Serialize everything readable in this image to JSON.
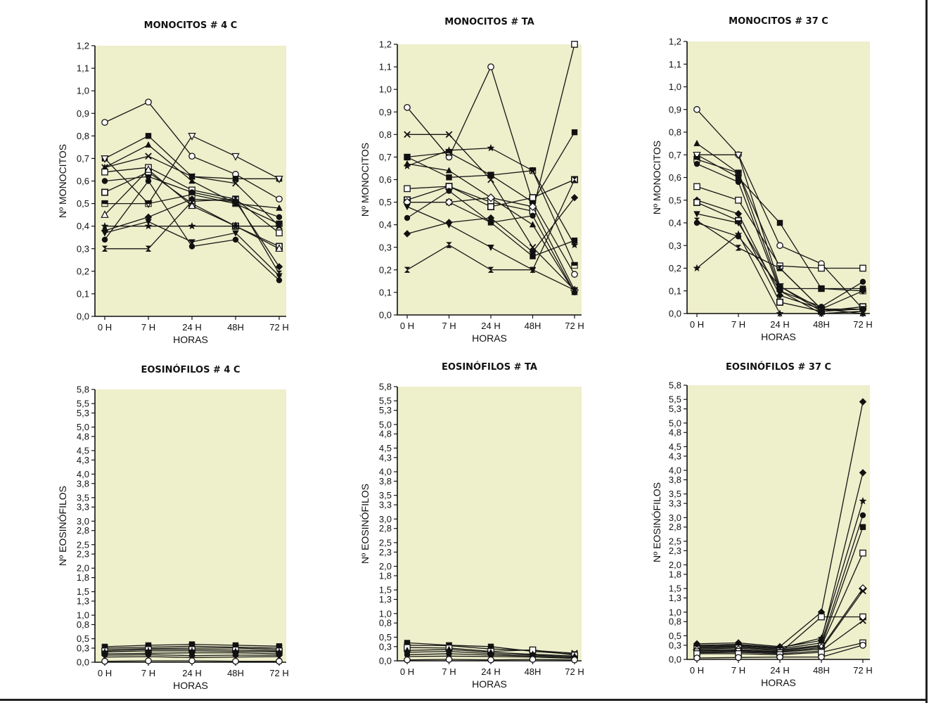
{
  "colors": {
    "plot_background": "#eeefcb",
    "ink": "#151515"
  },
  "chart_data": [
    {
      "type": "line",
      "title": "MONOCITOS # 4 C",
      "xlabel": "HORAS",
      "ylabel": "Nº MONOCITOS",
      "categories": [
        "0 H",
        "7 H",
        "24 H",
        "48H",
        "72 H"
      ],
      "ylim": [
        0,
        1.2
      ],
      "yticks": [
        "0,0",
        "0,1",
        "0,2",
        "0,3",
        "0,4",
        "0,5",
        "0,6",
        "0,7",
        "0,8",
        "0,9",
        "1,0",
        "1,1",
        "1,2"
      ],
      "grid": false,
      "series": [
        {
          "marker": "circle-open",
          "values": [
            0.86,
            0.95,
            0.71,
            0.63,
            0.52
          ]
        },
        {
          "marker": "square-filled",
          "values": [
            0.7,
            0.8,
            0.62,
            0.61,
            0.61
          ]
        },
        {
          "marker": "triangle-down-open",
          "values": [
            0.7,
            0.5,
            0.8,
            0.71,
            0.61
          ]
        },
        {
          "marker": "x",
          "values": [
            0.66,
            0.71,
            0.62,
            0.59,
            0.4
          ]
        },
        {
          "marker": "triangle-filled",
          "values": [
            0.66,
            0.76,
            0.6,
            0.5,
            0.48
          ]
        },
        {
          "marker": "square-open",
          "values": [
            0.64,
            0.66,
            0.56,
            0.52,
            0.37
          ]
        },
        {
          "marker": "circle-filled",
          "values": [
            0.6,
            0.62,
            0.55,
            0.51,
            0.44
          ]
        },
        {
          "marker": "square-dot",
          "values": [
            0.55,
            0.64,
            0.5,
            0.4,
            0.31
          ]
        },
        {
          "marker": "square-half",
          "values": [
            0.5,
            0.5,
            0.54,
            0.5,
            0.41
          ]
        },
        {
          "marker": "triangle-open",
          "values": [
            0.45,
            0.65,
            0.49,
            0.4,
            0.3
          ]
        },
        {
          "marker": "star",
          "values": [
            0.4,
            0.4,
            0.4,
            0.4,
            0.4
          ]
        },
        {
          "marker": "diamond-filled",
          "values": [
            0.38,
            0.44,
            0.52,
            0.51,
            0.22
          ]
        },
        {
          "marker": "triangle-down-filled",
          "values": [
            0.37,
            0.42,
            0.33,
            0.37,
            0.18
          ]
        },
        {
          "marker": "circle-filled",
          "values": [
            0.34,
            0.6,
            0.31,
            0.34,
            0.16
          ]
        },
        {
          "marker": "hourglass",
          "values": [
            0.3,
            0.3,
            0.51,
            0.52,
            0.19
          ]
        }
      ]
    },
    {
      "type": "line",
      "title": "MONOCITOS # TA",
      "xlabel": "HORAS",
      "ylabel": "Nº MONOCITOS",
      "categories": [
        "0 H",
        "7 H",
        "24 H",
        "48H",
        "72 H"
      ],
      "ylim": [
        0,
        1.2
      ],
      "yticks": [
        "0,0",
        "0,1",
        "0,2",
        "0,3",
        "0,4",
        "0,5",
        "0,6",
        "0,7",
        "0,8",
        "0,9",
        "1,0",
        "1,1",
        "1,2"
      ],
      "grid": false,
      "series": [
        {
          "marker": "circle-open",
          "values": [
            0.92,
            0.7,
            1.1,
            0.5,
            0.18
          ]
        },
        {
          "marker": "x",
          "values": [
            0.8,
            0.8,
            0.6,
            0.3,
            0.11
          ]
        },
        {
          "marker": "square-half",
          "values": [
            0.7,
            0.72,
            0.62,
            0.64,
            0.22
          ]
        },
        {
          "marker": "square-filled",
          "values": [
            0.7,
            0.61,
            0.62,
            0.5,
            0.81
          ]
        },
        {
          "marker": "triangle-filled",
          "values": [
            0.67,
            0.64,
            0.52,
            0.4,
            0.1
          ]
        },
        {
          "marker": "star",
          "values": [
            0.66,
            0.73,
            0.74,
            0.64,
            0.31
          ]
        },
        {
          "marker": "square-open",
          "values": [
            0.56,
            0.57,
            0.5,
            0.46,
            1.2
          ]
        },
        {
          "marker": "square-dot",
          "values": [
            0.51,
            0.57,
            0.48,
            0.52,
            0.6
          ]
        },
        {
          "marker": "square-filled",
          "values": [
            0.5,
            0.5,
            0.41,
            0.26,
            0.33
          ]
        },
        {
          "marker": "diamond-open",
          "values": [
            0.5,
            0.5,
            0.52,
            0.48,
            0.11
          ]
        },
        {
          "marker": "circle-filled",
          "values": [
            0.43,
            0.55,
            0.41,
            0.44,
            0.1
          ]
        },
        {
          "marker": "triangle-down-filled",
          "values": [
            0.48,
            0.4,
            0.3,
            0.2,
            0.11
          ]
        },
        {
          "marker": "diamond-filled",
          "values": [
            0.36,
            0.41,
            0.43,
            0.28,
            0.52
          ]
        },
        {
          "marker": "hourglass",
          "values": [
            0.2,
            0.31,
            0.2,
            0.2,
            0.6
          ]
        }
      ]
    },
    {
      "type": "line",
      "title": "MONOCITOS # 37 C",
      "xlabel": "HORAS",
      "ylabel": "Nº MONOCITOS",
      "categories": [
        "0 H",
        "7 H",
        "24 H",
        "48H",
        "72 H"
      ],
      "ylim": [
        0,
        1.2
      ],
      "yticks": [
        "0,0",
        "0,1",
        "0,2",
        "0,3",
        "0,4",
        "0,5",
        "0,6",
        "0,7",
        "0,8",
        "0,9",
        "1,0",
        "1,1",
        "1,2"
      ],
      "grid": false,
      "series": [
        {
          "marker": "circle-open",
          "values": [
            0.9,
            0.7,
            0.3,
            0.22,
            0.02
          ]
        },
        {
          "marker": "triangle-filled",
          "values": [
            0.75,
            0.62,
            0.2,
            0.02,
            0.0
          ]
        },
        {
          "marker": "square-filled",
          "values": [
            0.7,
            0.6,
            0.4,
            0.11,
            0.11
          ]
        },
        {
          "marker": "triangle-down-open",
          "values": [
            0.7,
            0.7,
            0.12,
            0.02,
            0.02
          ]
        },
        {
          "marker": "circle-filled",
          "values": [
            0.66,
            0.58,
            0.1,
            0.03,
            0.14
          ]
        },
        {
          "marker": "square-half",
          "values": [
            0.68,
            0.62,
            0.11,
            0.11,
            0.1
          ]
        },
        {
          "marker": "square-open",
          "values": [
            0.56,
            0.5,
            0.21,
            0.2,
            0.2
          ]
        },
        {
          "marker": "diamond-filled",
          "values": [
            0.5,
            0.44,
            0.08,
            0.02,
            0.1
          ]
        },
        {
          "marker": "square-dot",
          "values": [
            0.49,
            0.41,
            0.05,
            0.01,
            0.03
          ]
        },
        {
          "marker": "triangle-down-filled",
          "values": [
            0.44,
            0.4,
            0.1,
            0.0,
            0.01
          ]
        },
        {
          "marker": "hourglass",
          "values": [
            0.41,
            0.29,
            0.2,
            0.02,
            0.02
          ]
        },
        {
          "marker": "circle-filled",
          "values": [
            0.4,
            0.34,
            0.12,
            0.01,
            0.02
          ]
        },
        {
          "marker": "star",
          "values": [
            0.2,
            0.35,
            0.0,
            0.0,
            0.01
          ]
        }
      ]
    },
    {
      "type": "line",
      "title": "EOSINÓFILOS # 4 C",
      "xlabel": "HORAS",
      "ylabel": "Nº EOSINÓFILOS",
      "categories": [
        "0 H",
        "7 H",
        "24 H",
        "48H",
        "72 H"
      ],
      "ylim": [
        0,
        5.8
      ],
      "yticks": [
        "0,0",
        "0,3",
        "0,5",
        "0,8",
        "1,0",
        "1,3",
        "1,5",
        "1,8",
        "2,0",
        "2,3",
        "2,5",
        "2,8",
        "3,0",
        "3,3",
        "3,5",
        "3,8",
        "4,0",
        "4,3",
        "4,5",
        "4,8",
        "5,0",
        "5,3",
        "5,5",
        "5,8"
      ],
      "grid": false,
      "series": [
        {
          "marker": "square-filled",
          "values": [
            0.33,
            0.36,
            0.38,
            0.36,
            0.34
          ]
        },
        {
          "marker": "x",
          "values": [
            0.3,
            0.32,
            0.34,
            0.32,
            0.3
          ]
        },
        {
          "marker": "triangle-filled",
          "values": [
            0.27,
            0.29,
            0.3,
            0.3,
            0.27
          ]
        },
        {
          "marker": "square-open",
          "values": [
            0.24,
            0.27,
            0.27,
            0.26,
            0.24
          ]
        },
        {
          "marker": "star",
          "values": [
            0.22,
            0.24,
            0.24,
            0.23,
            0.22
          ]
        },
        {
          "marker": "circle-filled",
          "values": [
            0.18,
            0.19,
            0.2,
            0.2,
            0.18
          ]
        },
        {
          "marker": "diamond-filled",
          "values": [
            0.15,
            0.16,
            0.14,
            0.15,
            0.15
          ]
        },
        {
          "marker": "hourglass",
          "values": [
            0.11,
            0.12,
            0.1,
            0.11,
            0.12
          ]
        },
        {
          "marker": "circle-open",
          "values": [
            0.02,
            0.03,
            0.03,
            0.02,
            0.02
          ]
        }
      ]
    },
    {
      "type": "line",
      "title": "EOSINÓFILOS # TA",
      "xlabel": "HORAS",
      "ylabel": "Nº EOSINÓFILOS",
      "categories": [
        "0 H",
        "7 H",
        "24 H",
        "48H",
        "72 H"
      ],
      "ylim": [
        0,
        5.8
      ],
      "yticks": [
        "0,0",
        "0,3",
        "0,5",
        "0,8",
        "1,0",
        "1,3",
        "1,5",
        "1,8",
        "2,0",
        "2,3",
        "2,5",
        "2,8",
        "3,0",
        "3,3",
        "3,5",
        "3,8",
        "4,0",
        "4,3",
        "4,5",
        "4,8",
        "5,0",
        "5,3",
        "5,5",
        "5,8"
      ],
      "grid": false,
      "series": [
        {
          "marker": "square-filled",
          "values": [
            0.38,
            0.33,
            0.3,
            0.2,
            0.14
          ]
        },
        {
          "marker": "x",
          "values": [
            0.33,
            0.32,
            0.25,
            0.22,
            0.16
          ]
        },
        {
          "marker": "square-open",
          "values": [
            0.28,
            0.27,
            0.2,
            0.23,
            0.12
          ]
        },
        {
          "marker": "triangle-filled",
          "values": [
            0.22,
            0.24,
            0.18,
            0.14,
            0.1
          ]
        },
        {
          "marker": "star",
          "values": [
            0.18,
            0.2,
            0.15,
            0.12,
            0.08
          ]
        },
        {
          "marker": "circle-filled",
          "values": [
            0.13,
            0.15,
            0.12,
            0.1,
            0.06
          ]
        },
        {
          "marker": "hourglass",
          "values": [
            0.09,
            0.1,
            0.09,
            0.08,
            0.05
          ]
        },
        {
          "marker": "circle-open",
          "values": [
            0.02,
            0.03,
            0.02,
            0.03,
            0.02
          ]
        }
      ]
    },
    {
      "type": "line",
      "title": "EOSINÓFILOS # 37 C",
      "xlabel": "HORAS",
      "ylabel": "Nº EOSINÓFILOS",
      "categories": [
        "0 H",
        "7 H",
        "24 H",
        "48H",
        "72 H"
      ],
      "ylim": [
        0,
        5.8
      ],
      "yticks": [
        "0,0",
        "0,3",
        "0,5",
        "0,8",
        "1,0",
        "1,3",
        "1,5",
        "1,8",
        "2,0",
        "2,3",
        "2,5",
        "2,8",
        "3,0",
        "3,3",
        "3,5",
        "3,8",
        "4,0",
        "4,3",
        "4,5",
        "4,8",
        "5,0",
        "5,3",
        "5,5",
        "5,8"
      ],
      "grid": false,
      "series": [
        {
          "marker": "diamond-filled",
          "values": [
            0.33,
            0.35,
            0.27,
            1.0,
            5.45
          ]
        },
        {
          "marker": "diamond-filled",
          "values": [
            0.3,
            0.32,
            0.25,
            0.4,
            3.95
          ]
        },
        {
          "marker": "star",
          "values": [
            0.28,
            0.3,
            0.24,
            0.45,
            3.35
          ]
        },
        {
          "marker": "circle-filled",
          "values": [
            0.26,
            0.28,
            0.22,
            0.35,
            3.05
          ]
        },
        {
          "marker": "square-filled",
          "values": [
            0.24,
            0.26,
            0.2,
            0.3,
            2.8
          ]
        },
        {
          "marker": "square-open",
          "values": [
            0.22,
            0.24,
            0.18,
            0.28,
            2.25
          ]
        },
        {
          "marker": "diamond-open",
          "values": [
            0.2,
            0.21,
            0.16,
            0.25,
            1.5
          ]
        },
        {
          "marker": "x",
          "values": [
            0.18,
            0.19,
            0.15,
            0.22,
            1.45
          ]
        },
        {
          "marker": "square-open",
          "values": [
            0.16,
            0.17,
            0.14,
            0.9,
            0.9
          ]
        },
        {
          "marker": "x",
          "values": [
            0.14,
            0.15,
            0.12,
            0.18,
            0.82
          ]
        },
        {
          "marker": "square-open",
          "values": [
            0.12,
            0.12,
            0.1,
            0.15,
            0.35
          ]
        },
        {
          "marker": "circle-open",
          "values": [
            0.03,
            0.04,
            0.05,
            0.05,
            0.3
          ]
        }
      ]
    }
  ]
}
